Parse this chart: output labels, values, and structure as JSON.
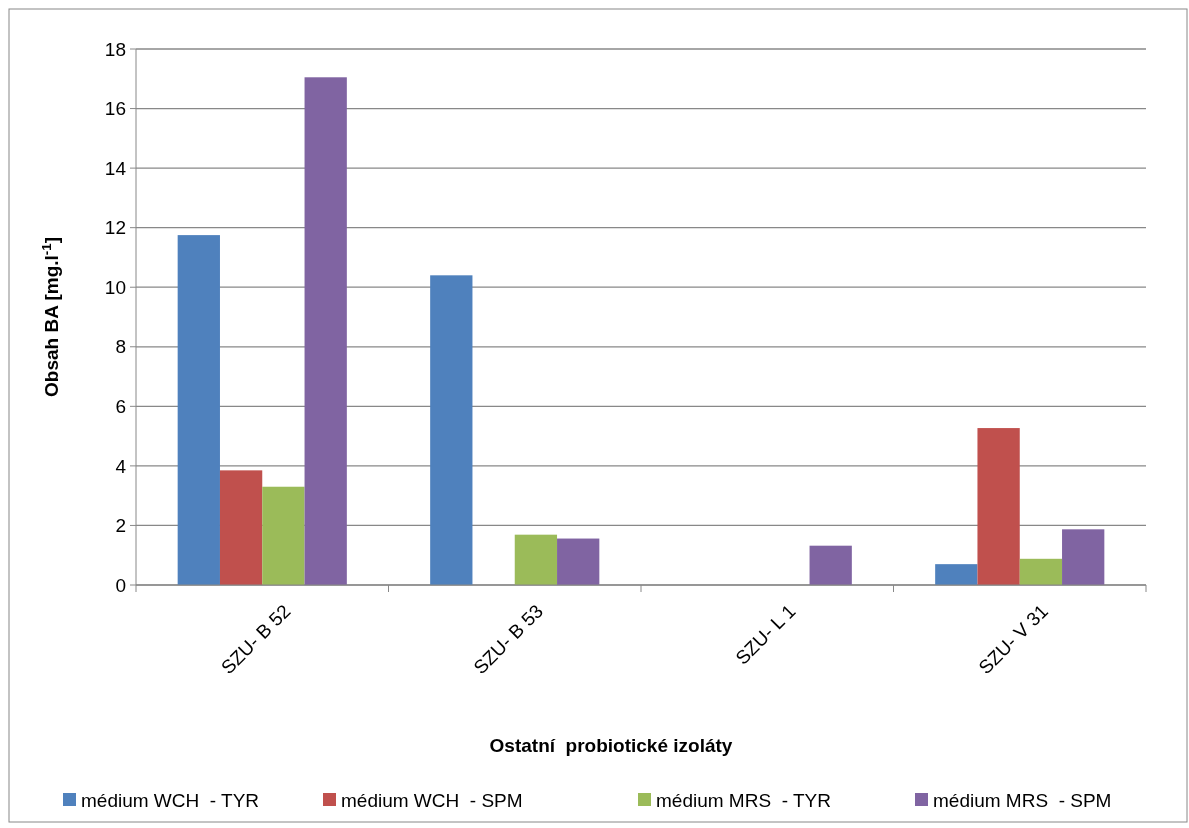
{
  "chart_data": {
    "type": "bar",
    "xlabel": "Ostatní  probiotické izoláty",
    "ylabel": "Obsah BA [mg.l$^{-1}$]",
    "categories": [
      "SZU- B 52",
      "SZU- B 53",
      "SZU- L 1",
      "SZU- V 31"
    ],
    "series": [
      {
        "name": "médium WCH  - TYR",
        "color": "#4f81bd",
        "values": [
          11.75,
          10.4,
          0,
          0.7
        ]
      },
      {
        "name": "médium WCH  - SPM",
        "color": "#c0504d",
        "values": [
          3.85,
          0,
          0,
          5.27
        ]
      },
      {
        "name": "médium MRS  - TYR",
        "color": "#9bbb59",
        "values": [
          3.3,
          1.69,
          0,
          0.88
        ]
      },
      {
        "name": "médium MRS  - SPM",
        "color": "#8064a2",
        "values": [
          17.05,
          1.56,
          1.32,
          1.87
        ]
      }
    ],
    "ylim": [
      0,
      18
    ],
    "yticks": [
      0,
      2,
      4,
      6,
      8,
      10,
      12,
      14,
      16,
      18
    ],
    "grid": "y",
    "legend": "bottom"
  }
}
